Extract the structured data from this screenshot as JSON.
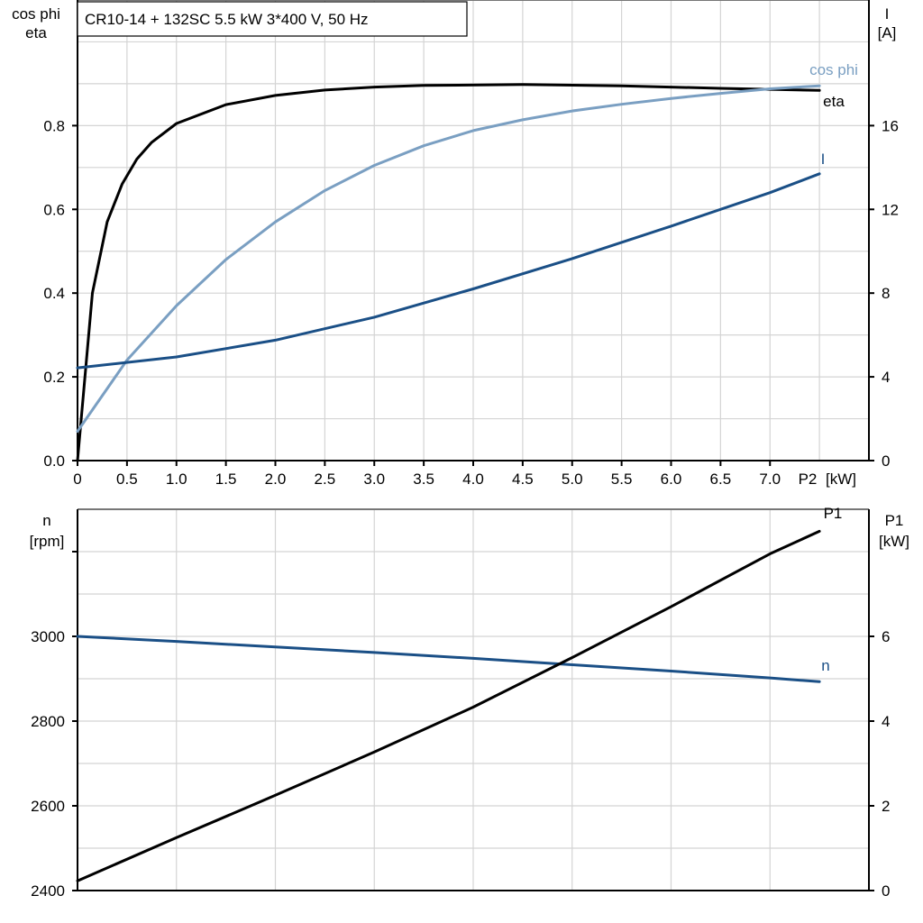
{
  "title": "CR10-14 + 132SC   5.5 kW   3*400 V, 50 Hz",
  "chart_data": [
    {
      "type": "line",
      "left_axis_label": [
        "cos phi",
        "eta"
      ],
      "right_axis_label": [
        "I",
        "[A]"
      ],
      "x_unit_label": "[kW]",
      "x_end_label": "P2",
      "xlim": [
        0,
        8
      ],
      "ylim_left": [
        0,
        1.1
      ],
      "ylim_right": [
        0,
        22
      ],
      "x_ticks": [
        0,
        0.5,
        1.0,
        1.5,
        2.0,
        2.5,
        3.0,
        3.5,
        4.0,
        4.5,
        5.0,
        5.5,
        6.0,
        6.5,
        7.0
      ],
      "x_tick_labels": [
        "0",
        "0.5",
        "1.0",
        "1.5",
        "2.0",
        "2.5",
        "3.0",
        "3.5",
        "4.0",
        "4.5",
        "5.0",
        "5.5",
        "6.0",
        "6.5",
        "7.0"
      ],
      "y_left_ticks": [
        0,
        0.2,
        0.4,
        0.6,
        0.8
      ],
      "y_left_tick_labels": [
        "0.0",
        "0.2",
        "0.4",
        "0.6",
        "0.8"
      ],
      "y_right_ticks": [
        0,
        4,
        8,
        12,
        16
      ],
      "y_right_tick_labels": [
        "0",
        "4",
        "8",
        "12",
        "16"
      ],
      "grid": true,
      "series": [
        {
          "name": "eta",
          "axis": "left",
          "color": "#000000",
          "x": [
            0,
            0.15,
            0.3,
            0.45,
            0.6,
            0.75,
            1.0,
            1.5,
            2.0,
            2.5,
            3.0,
            3.5,
            4.5,
            5.5,
            6.5,
            7.5
          ],
          "y": [
            0,
            0.4,
            0.57,
            0.66,
            0.72,
            0.76,
            0.805,
            0.85,
            0.872,
            0.885,
            0.892,
            0.896,
            0.898,
            0.895,
            0.889,
            0.884
          ]
        },
        {
          "name": "cos phi",
          "axis": "left",
          "color": "#7a9fc2",
          "x": [
            0,
            0.5,
            1.0,
            1.5,
            2.0,
            2.5,
            3.0,
            3.5,
            4.0,
            4.5,
            5.0,
            5.5,
            6.0,
            6.5,
            7.0,
            7.5
          ],
          "y": [
            0.07,
            0.24,
            0.37,
            0.48,
            0.57,
            0.645,
            0.705,
            0.752,
            0.788,
            0.814,
            0.835,
            0.851,
            0.865,
            0.877,
            0.888,
            0.895
          ]
        },
        {
          "name": "I",
          "axis": "right",
          "color": "#1a4f86",
          "x": [
            0,
            1,
            2,
            3,
            4,
            5,
            6,
            7,
            7.5
          ],
          "y": [
            4.43,
            4.95,
            5.75,
            6.85,
            8.2,
            9.65,
            11.2,
            12.8,
            13.7
          ]
        }
      ]
    },
    {
      "type": "line",
      "left_axis_label": [
        "n",
        "[rpm]"
      ],
      "right_axis_label": [
        "P1",
        "[kW]"
      ],
      "xlim": [
        0,
        8
      ],
      "ylim_left": [
        2400,
        3300
      ],
      "ylim_right": [
        0,
        9
      ],
      "y_left_ticks": [
        2400,
        2600,
        2800,
        3000,
        3200
      ],
      "y_left_tick_labels": [
        "2400",
        "2600",
        "2800",
        "3000",
        ""
      ],
      "y_right_ticks": [
        0,
        2,
        4,
        6
      ],
      "y_right_tick_labels": [
        "0",
        "2",
        "4",
        "6"
      ],
      "grid": true,
      "series": [
        {
          "name": "n",
          "axis": "left",
          "color": "#1a4f86",
          "x": [
            0,
            1,
            2,
            3,
            4,
            5,
            6,
            7,
            7.5
          ],
          "y": [
            3000,
            2988,
            2975,
            2962,
            2948,
            2933,
            2918,
            2902,
            2893
          ]
        },
        {
          "name": "P1",
          "axis": "right",
          "color": "#000000",
          "x": [
            0,
            1,
            2,
            3,
            4,
            5,
            6,
            7,
            7.5
          ],
          "y": [
            0.23,
            1.25,
            2.25,
            3.27,
            4.33,
            5.5,
            6.7,
            7.95,
            8.48
          ]
        }
      ]
    }
  ]
}
